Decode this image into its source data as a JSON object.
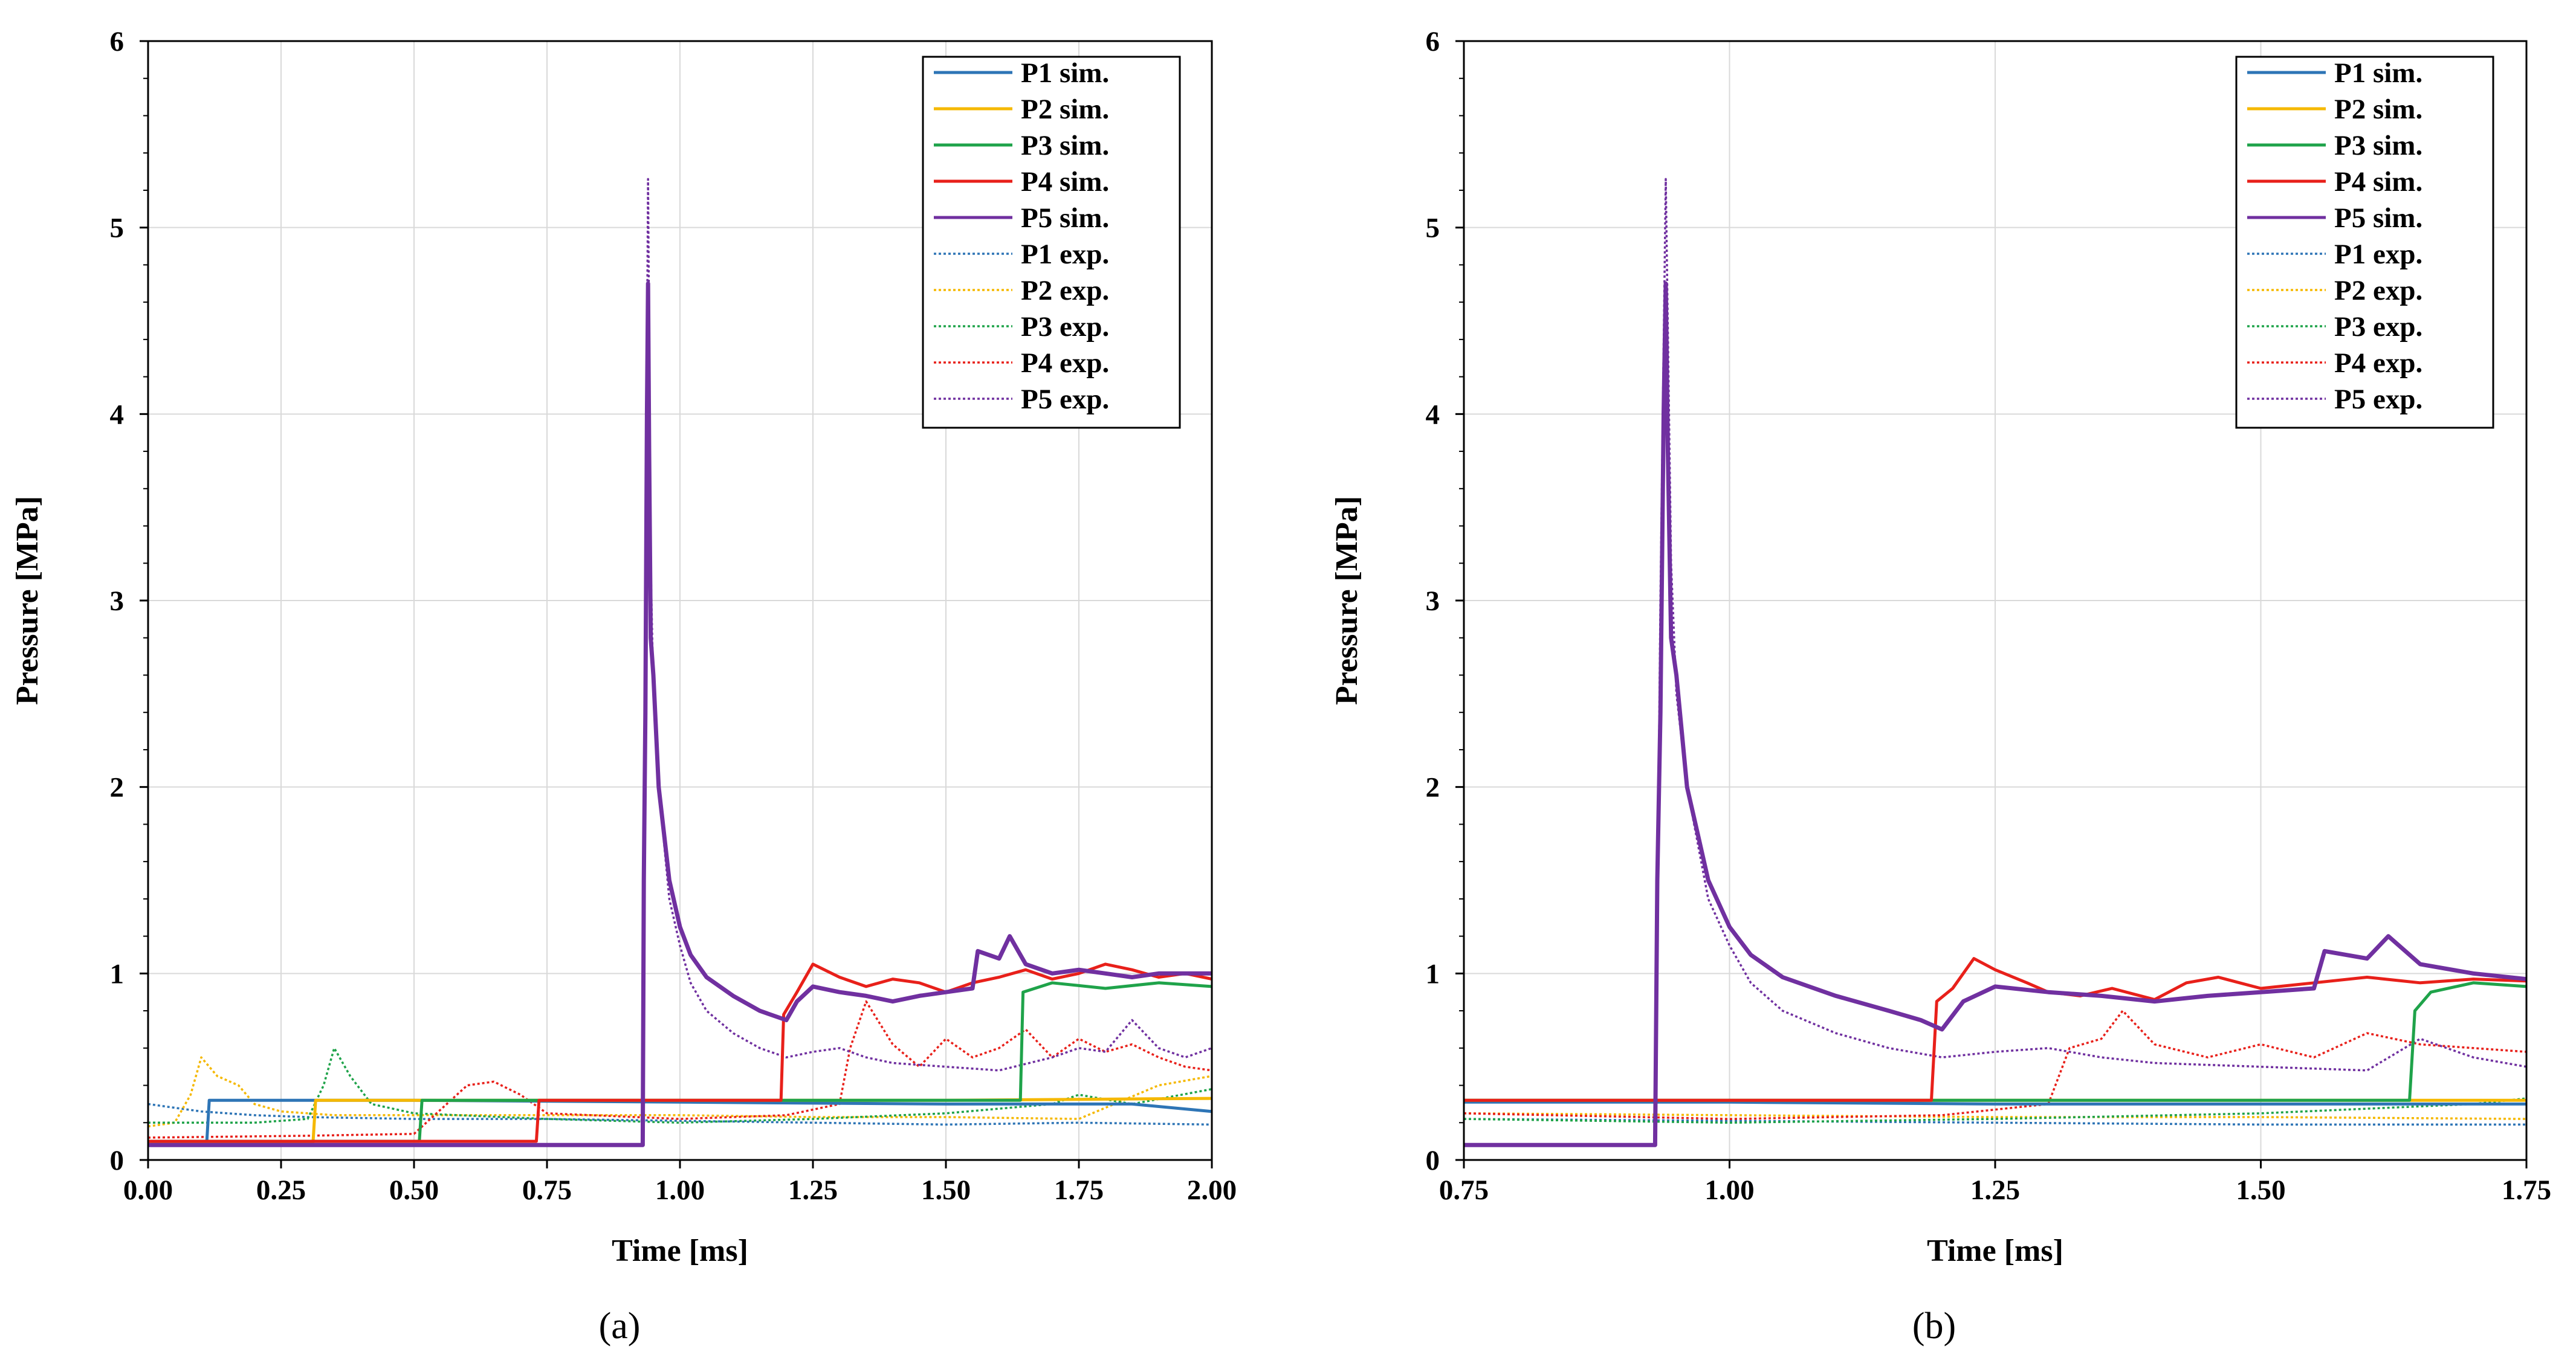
{
  "colors": {
    "P1": "#2E75B6",
    "P2": "#F5B800",
    "P3": "#1FA34A",
    "P4": "#E8201A",
    "P5": "#7030A0",
    "grid": "#d9d9d9",
    "axis": "#000000"
  },
  "chart_data": [
    {
      "type": "line",
      "panel_label": "(a)",
      "xlabel": "Time [ms]",
      "ylabel": "Pressure [MPa]",
      "xlim": [
        0.0,
        2.0
      ],
      "ylim": [
        0,
        6
      ],
      "xticks": [
        0.0,
        0.25,
        0.5,
        0.75,
        1.0,
        1.25,
        1.5,
        1.75,
        2.0
      ],
      "xtick_labels": [
        "0.00",
        "0.25",
        "0.50",
        "0.75",
        "1.00",
        "1.25",
        "1.50",
        "1.75",
        "2.00"
      ],
      "yticks": [
        0,
        1,
        2,
        3,
        4,
        5,
        6
      ],
      "ytick_labels": [
        "0",
        "1",
        "2",
        "3",
        "4",
        "5",
        "6"
      ],
      "legend_position": "top-right",
      "legend": [
        "P1 sim.",
        "P2 sim.",
        "P3 sim.",
        "P4 sim.",
        "P5 sim.",
        "P1 exp.",
        "P2 exp.",
        "P3 exp.",
        "P4 exp.",
        "P5 exp."
      ],
      "series": [
        {
          "name": "P1 sim.",
          "style": "solid",
          "color_key": "P1",
          "x": [
            0.0,
            0.11,
            0.115,
            0.5,
            1.0,
            1.5,
            1.85,
            2.0
          ],
          "y": [
            0.08,
            0.08,
            0.32,
            0.32,
            0.31,
            0.3,
            0.3,
            0.26
          ]
        },
        {
          "name": "P2 sim.",
          "style": "solid",
          "color_key": "P2",
          "x": [
            0.0,
            0.31,
            0.315,
            0.5,
            1.0,
            1.5,
            2.0
          ],
          "y": [
            0.09,
            0.09,
            0.32,
            0.32,
            0.32,
            0.32,
            0.33
          ]
        },
        {
          "name": "P3 sim.",
          "style": "solid",
          "color_key": "P3",
          "x": [
            0.0,
            0.51,
            0.515,
            1.0,
            1.5,
            1.64,
            1.645,
            1.7,
            1.8,
            1.9,
            2.0
          ],
          "y": [
            0.1,
            0.1,
            0.32,
            0.32,
            0.32,
            0.32,
            0.9,
            0.95,
            0.92,
            0.95,
            0.93
          ]
        },
        {
          "name": "P4 sim.",
          "style": "solid",
          "color_key": "P4",
          "x": [
            0.0,
            0.73,
            0.735,
            1.0,
            1.19,
            1.195,
            1.22,
            1.25,
            1.3,
            1.35,
            1.4,
            1.45,
            1.5,
            1.55,
            1.6,
            1.65,
            1.7,
            1.75,
            1.8,
            1.85,
            1.9,
            1.95,
            2.0
          ],
          "y": [
            0.1,
            0.1,
            0.32,
            0.32,
            0.32,
            0.78,
            0.9,
            1.05,
            0.98,
            0.93,
            0.97,
            0.95,
            0.9,
            0.95,
            0.98,
            1.02,
            0.97,
            1.0,
            1.05,
            1.02,
            0.98,
            1.0,
            0.97
          ]
        },
        {
          "name": "P5 sim.",
          "style": "solid",
          "color_key": "P5",
          "x": [
            0.0,
            0.93,
            0.932,
            0.935,
            0.938,
            0.94,
            0.942,
            0.945,
            0.95,
            0.955,
            0.96,
            0.97,
            0.98,
            1.0,
            1.02,
            1.05,
            1.1,
            1.15,
            1.2,
            1.22,
            1.25,
            1.3,
            1.35,
            1.4,
            1.45,
            1.5,
            1.55,
            1.56,
            1.6,
            1.62,
            1.65,
            1.7,
            1.75,
            1.8,
            1.85,
            1.9,
            1.95,
            2.0
          ],
          "y": [
            0.08,
            0.08,
            1.5,
            2.4,
            4.0,
            4.7,
            3.8,
            2.8,
            2.6,
            2.3,
            2.0,
            1.75,
            1.5,
            1.25,
            1.1,
            0.98,
            0.88,
            0.8,
            0.75,
            0.85,
            0.93,
            0.9,
            0.88,
            0.85,
            0.88,
            0.9,
            0.92,
            1.12,
            1.08,
            1.2,
            1.05,
            1.0,
            1.02,
            1.0,
            0.98,
            1.0,
            1.0,
            1.0
          ]
        },
        {
          "name": "P1 exp.",
          "style": "dotted",
          "color_key": "P1",
          "x": [
            0.0,
            0.05,
            0.1,
            0.2,
            0.3,
            0.5,
            0.75,
            1.0,
            1.25,
            1.5,
            1.75,
            2.0
          ],
          "y": [
            0.3,
            0.28,
            0.26,
            0.24,
            0.23,
            0.22,
            0.22,
            0.21,
            0.2,
            0.19,
            0.2,
            0.19
          ]
        },
        {
          "name": "P2 exp.",
          "style": "dotted",
          "color_key": "P2",
          "x": [
            0.0,
            0.05,
            0.08,
            0.1,
            0.13,
            0.17,
            0.2,
            0.25,
            0.3,
            0.35,
            0.5,
            0.75,
            1.0,
            1.25,
            1.5,
            1.75,
            1.9,
            2.0
          ],
          "y": [
            0.18,
            0.2,
            0.35,
            0.55,
            0.45,
            0.4,
            0.3,
            0.26,
            0.25,
            0.24,
            0.24,
            0.24,
            0.24,
            0.23,
            0.23,
            0.22,
            0.4,
            0.45
          ]
        },
        {
          "name": "P3 exp.",
          "style": "dotted",
          "color_key": "P3",
          "x": [
            0.0,
            0.2,
            0.3,
            0.33,
            0.35,
            0.38,
            0.42,
            0.5,
            0.75,
            1.0,
            1.25,
            1.5,
            1.7,
            1.75,
            1.85,
            2.0
          ],
          "y": [
            0.2,
            0.2,
            0.22,
            0.4,
            0.6,
            0.45,
            0.3,
            0.25,
            0.22,
            0.2,
            0.22,
            0.25,
            0.3,
            0.35,
            0.3,
            0.38
          ]
        },
        {
          "name": "P4 exp.",
          "style": "dotted",
          "color_key": "P4",
          "x": [
            0.0,
            0.3,
            0.5,
            0.6,
            0.65,
            0.7,
            0.75,
            1.0,
            1.2,
            1.3,
            1.32,
            1.35,
            1.4,
            1.45,
            1.5,
            1.55,
            1.6,
            1.65,
            1.7,
            1.75,
            1.8,
            1.85,
            1.9,
            1.95,
            2.0
          ],
          "y": [
            0.12,
            0.13,
            0.14,
            0.4,
            0.42,
            0.35,
            0.25,
            0.22,
            0.24,
            0.3,
            0.6,
            0.85,
            0.62,
            0.5,
            0.65,
            0.55,
            0.6,
            0.7,
            0.55,
            0.65,
            0.58,
            0.62,
            0.55,
            0.5,
            0.48
          ]
        },
        {
          "name": "P5 exp.",
          "style": "dotted",
          "color_key": "P5",
          "x": [
            0.0,
            0.93,
            0.935,
            0.94,
            0.945,
            0.95,
            0.96,
            0.97,
            0.98,
            1.0,
            1.02,
            1.05,
            1.1,
            1.15,
            1.2,
            1.25,
            1.3,
            1.35,
            1.4,
            1.5,
            1.6,
            1.7,
            1.75,
            1.8,
            1.85,
            1.9,
            1.95,
            2.0
          ],
          "y": [
            0.08,
            0.08,
            3.0,
            5.26,
            3.2,
            2.5,
            2.0,
            1.7,
            1.4,
            1.15,
            0.95,
            0.8,
            0.68,
            0.6,
            0.55,
            0.58,
            0.6,
            0.55,
            0.52,
            0.5,
            0.48,
            0.55,
            0.6,
            0.58,
            0.75,
            0.6,
            0.55,
            0.6
          ]
        }
      ]
    },
    {
      "type": "line",
      "panel_label": "(b)",
      "xlabel": "Time [ms]",
      "ylabel": "Pressure [MPa]",
      "xlim": [
        0.75,
        1.75
      ],
      "ylim": [
        0,
        6
      ],
      "xticks": [
        0.75,
        1.0,
        1.25,
        1.5,
        1.75
      ],
      "xtick_labels": [
        "0.75",
        "1.00",
        "1.25",
        "1.50",
        "1.75"
      ],
      "yticks": [
        0,
        1,
        2,
        3,
        4,
        5,
        6
      ],
      "ytick_labels": [
        "0",
        "1",
        "2",
        "3",
        "4",
        "5",
        "6"
      ],
      "legend_position": "top-right",
      "legend": [
        "P1 sim.",
        "P2 sim.",
        "P3 sim.",
        "P4 sim.",
        "P5 sim.",
        "P1 exp.",
        "P2 exp.",
        "P3 exp.",
        "P4 exp.",
        "P5 exp."
      ],
      "series": [
        {
          "name": "P1 sim.",
          "style": "solid",
          "color_key": "P1",
          "x": [
            0.75,
            1.0,
            1.25,
            1.5,
            1.75
          ],
          "y": [
            0.31,
            0.31,
            0.3,
            0.3,
            0.3
          ]
        },
        {
          "name": "P2 sim.",
          "style": "solid",
          "color_key": "P2",
          "x": [
            0.75,
            1.0,
            1.25,
            1.5,
            1.75
          ],
          "y": [
            0.32,
            0.32,
            0.32,
            0.32,
            0.32
          ]
        },
        {
          "name": "P3 sim.",
          "style": "solid",
          "color_key": "P3",
          "x": [
            0.75,
            1.0,
            1.25,
            1.5,
            1.64,
            1.645,
            1.66,
            1.7,
            1.75
          ],
          "y": [
            0.32,
            0.32,
            0.32,
            0.32,
            0.32,
            0.8,
            0.9,
            0.95,
            0.93
          ]
        },
        {
          "name": "P4 sim.",
          "style": "solid",
          "color_key": "P4",
          "x": [
            0.75,
            1.0,
            1.19,
            1.195,
            1.21,
            1.23,
            1.25,
            1.28,
            1.3,
            1.33,
            1.36,
            1.4,
            1.43,
            1.46,
            1.5,
            1.55,
            1.6,
            1.65,
            1.7,
            1.75
          ],
          "y": [
            0.32,
            0.32,
            0.32,
            0.85,
            0.92,
            1.08,
            1.02,
            0.95,
            0.9,
            0.88,
            0.92,
            0.86,
            0.95,
            0.98,
            0.92,
            0.95,
            0.98,
            0.95,
            0.97,
            0.96
          ]
        },
        {
          "name": "P5 sim.",
          "style": "solid",
          "color_key": "P5",
          "x": [
            0.75,
            0.93,
            0.932,
            0.935,
            0.938,
            0.94,
            0.942,
            0.945,
            0.95,
            0.955,
            0.96,
            0.97,
            0.98,
            1.0,
            1.02,
            1.05,
            1.1,
            1.15,
            1.18,
            1.2,
            1.22,
            1.25,
            1.3,
            1.35,
            1.4,
            1.45,
            1.5,
            1.55,
            1.56,
            1.6,
            1.62,
            1.65,
            1.7,
            1.75
          ],
          "y": [
            0.08,
            0.08,
            1.5,
            2.4,
            4.0,
            4.7,
            3.8,
            2.8,
            2.6,
            2.3,
            2.0,
            1.75,
            1.5,
            1.25,
            1.1,
            0.98,
            0.88,
            0.8,
            0.75,
            0.7,
            0.85,
            0.93,
            0.9,
            0.88,
            0.85,
            0.88,
            0.9,
            0.92,
            1.12,
            1.08,
            1.2,
            1.05,
            1.0,
            0.97
          ]
        },
        {
          "name": "P1 exp.",
          "style": "dotted",
          "color_key": "P1",
          "x": [
            0.75,
            1.0,
            1.25,
            1.5,
            1.75
          ],
          "y": [
            0.22,
            0.21,
            0.2,
            0.19,
            0.19
          ]
        },
        {
          "name": "P2 exp.",
          "style": "dotted",
          "color_key": "P2",
          "x": [
            0.75,
            1.0,
            1.25,
            1.5,
            1.75
          ],
          "y": [
            0.25,
            0.24,
            0.23,
            0.23,
            0.22
          ]
        },
        {
          "name": "P3 exp.",
          "style": "dotted",
          "color_key": "P3",
          "x": [
            0.75,
            1.0,
            1.25,
            1.5,
            1.7,
            1.75
          ],
          "y": [
            0.22,
            0.2,
            0.22,
            0.25,
            0.3,
            0.33
          ]
        },
        {
          "name": "P4 exp.",
          "style": "dotted",
          "color_key": "P4",
          "x": [
            0.75,
            1.0,
            1.2,
            1.3,
            1.32,
            1.35,
            1.37,
            1.4,
            1.45,
            1.5,
            1.55,
            1.6,
            1.65,
            1.7,
            1.75
          ],
          "y": [
            0.25,
            0.22,
            0.24,
            0.3,
            0.6,
            0.65,
            0.8,
            0.62,
            0.55,
            0.62,
            0.55,
            0.68,
            0.62,
            0.6,
            0.58
          ]
        },
        {
          "name": "P5 exp.",
          "style": "dotted",
          "color_key": "P5",
          "x": [
            0.75,
            0.93,
            0.935,
            0.94,
            0.945,
            0.95,
            0.96,
            0.97,
            0.98,
            1.0,
            1.02,
            1.05,
            1.1,
            1.15,
            1.2,
            1.25,
            1.3,
            1.35,
            1.4,
            1.5,
            1.6,
            1.65,
            1.7,
            1.75
          ],
          "y": [
            0.08,
            0.08,
            3.0,
            5.26,
            3.2,
            2.5,
            2.0,
            1.7,
            1.4,
            1.15,
            0.95,
            0.8,
            0.68,
            0.6,
            0.55,
            0.58,
            0.6,
            0.55,
            0.52,
            0.5,
            0.48,
            0.65,
            0.55,
            0.5
          ]
        }
      ]
    }
  ]
}
